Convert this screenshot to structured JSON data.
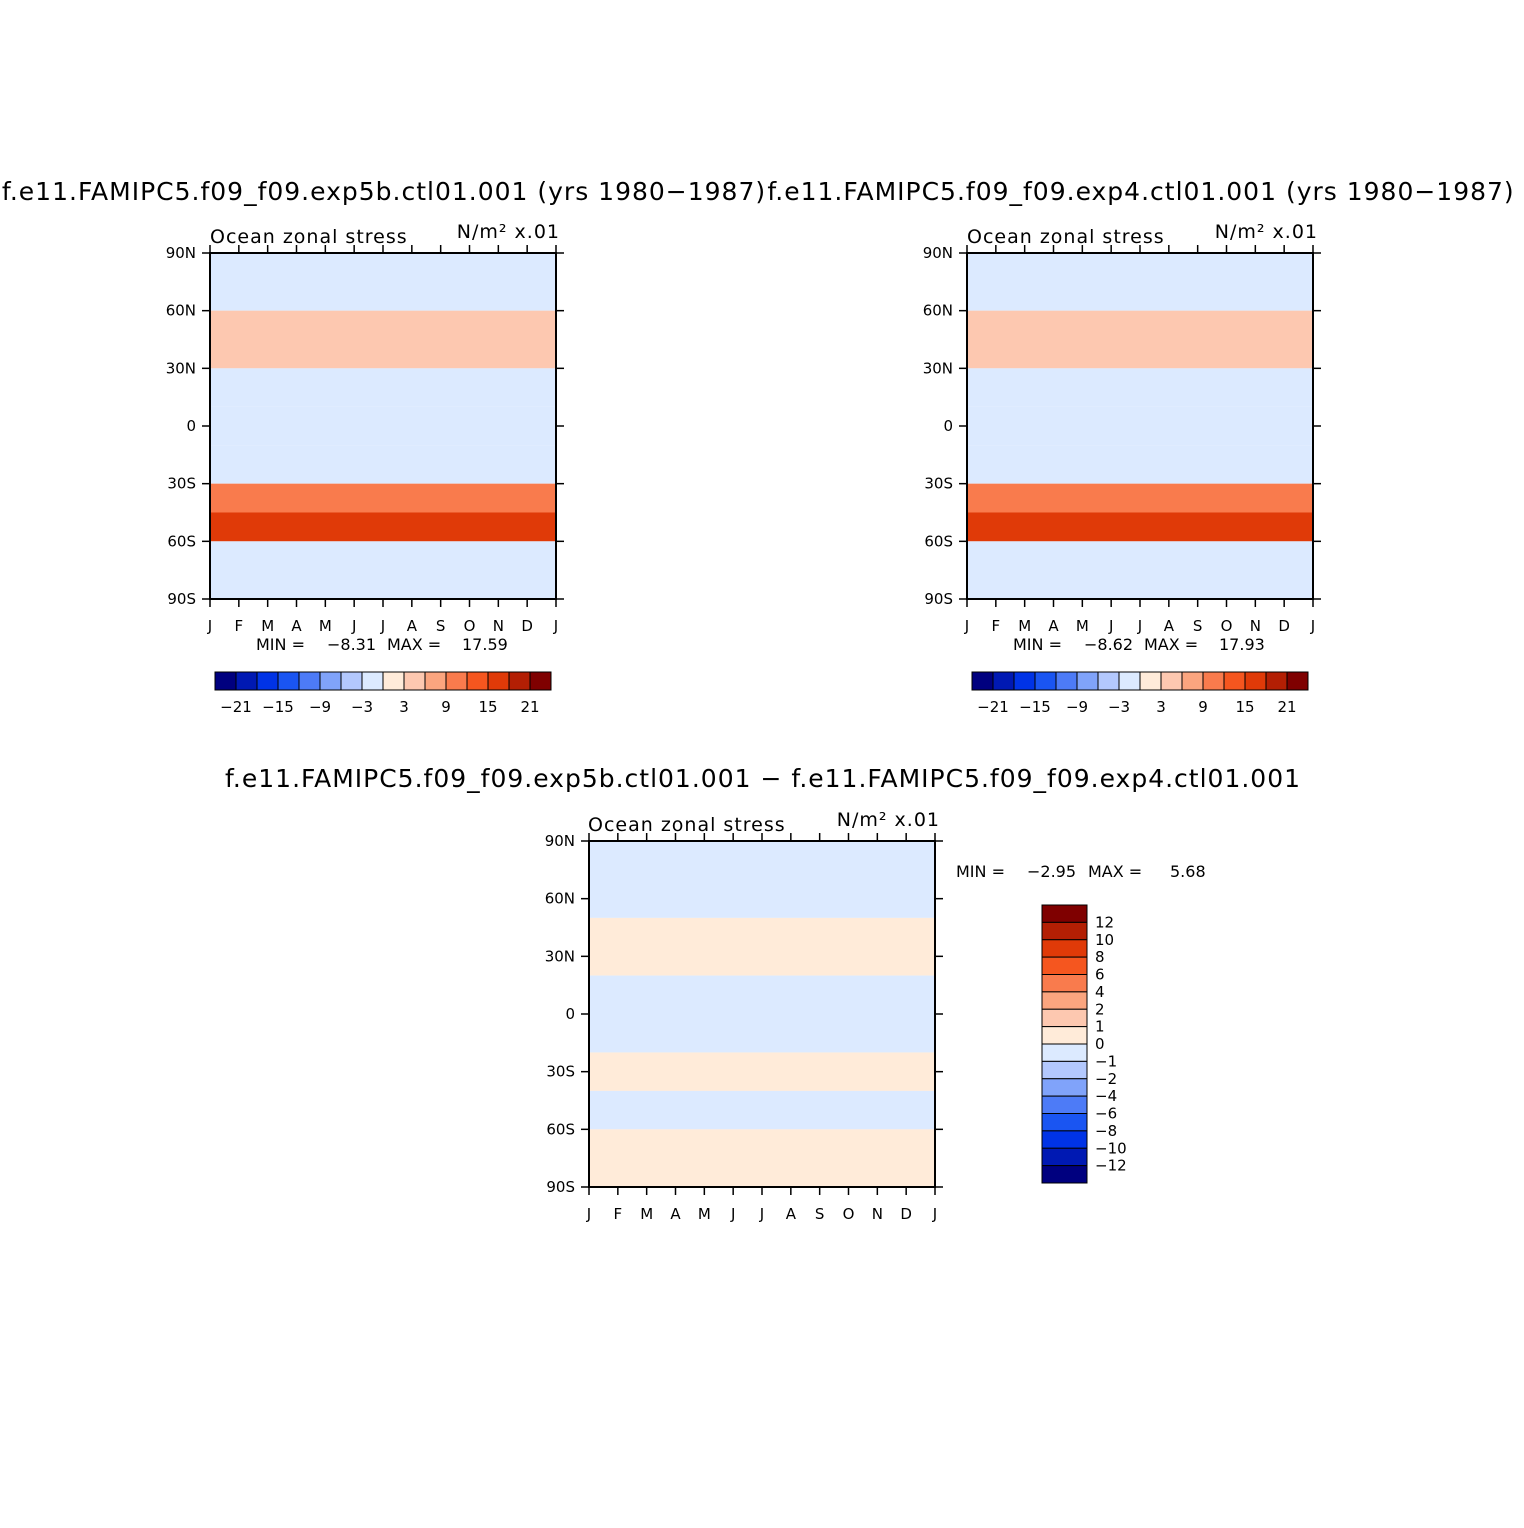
{
  "chart_data": [
    {
      "type": "heatmap",
      "title": "f.e11.FAMIPC5.f09_f09.exp5b.ctl01.001 (yrs 1980−1987)",
      "subtitle_left": "Ocean zonal stress",
      "subtitle_right": "N/m² x.01",
      "x_tick_labels": [
        "J",
        "F",
        "M",
        "A",
        "M",
        "J",
        "J",
        "A",
        "S",
        "O",
        "N",
        "D",
        "J"
      ],
      "y_tick_labels": [
        "90N",
        "60N",
        "30N",
        "0",
        "30S",
        "60S",
        "90S"
      ],
      "ylim": [
        -90,
        90
      ],
      "min_label": "MIN =",
      "min_value": "−8.31",
      "max_label": "MAX =",
      "max_value": "17.59",
      "colorbar": {
        "orientation": "horizontal",
        "colors": [
          "#00007f",
          "#0019b3",
          "#0033e6",
          "#1a55f2",
          "#4d7bf7",
          "#80a3fa",
          "#b3c8fd",
          "#dceaff",
          "#ffebd9",
          "#fdc8b0",
          "#fba57f",
          "#f97b4d",
          "#f5561f",
          "#e03a08",
          "#b31f04",
          "#7f0000"
        ],
        "label_values": [
          "−21",
          "−15",
          "−9",
          "−3",
          "3",
          "9",
          "15",
          "21"
        ]
      },
      "field_blocks": [
        {
          "lat_top": 90,
          "lat_bottom": 60,
          "value": "-1"
        },
        {
          "lat_top": 60,
          "lat_bottom": 30,
          "value": "3"
        },
        {
          "lat_top": 30,
          "lat_bottom": 10,
          "value": "-3"
        },
        {
          "lat_top": 10,
          "lat_bottom": -10,
          "value": "-1"
        },
        {
          "lat_top": -10,
          "lat_bottom": -30,
          "value": "-3"
        },
        {
          "lat_top": -30,
          "lat_bottom": -45,
          "value": "9"
        },
        {
          "lat_top": -45,
          "lat_bottom": -60,
          "value": "17"
        },
        {
          "lat_top": -60,
          "lat_bottom": -90,
          "value": "-1"
        }
      ]
    },
    {
      "type": "heatmap",
      "title": "f.e11.FAMIPC5.f09_f09.exp4.ctl01.001 (yrs 1980−1987)",
      "subtitle_left": "Ocean zonal stress",
      "subtitle_right": "N/m² x.01",
      "x_tick_labels": [
        "J",
        "F",
        "M",
        "A",
        "M",
        "J",
        "J",
        "A",
        "S",
        "O",
        "N",
        "D",
        "J"
      ],
      "y_tick_labels": [
        "90N",
        "60N",
        "30N",
        "0",
        "30S",
        "60S",
        "90S"
      ],
      "ylim": [
        -90,
        90
      ],
      "min_label": "MIN =",
      "min_value": "−8.62",
      "max_label": "MAX =",
      "max_value": "17.93",
      "colorbar": {
        "orientation": "horizontal",
        "colors": [
          "#00007f",
          "#0019b3",
          "#0033e6",
          "#1a55f2",
          "#4d7bf7",
          "#80a3fa",
          "#b3c8fd",
          "#dceaff",
          "#ffebd9",
          "#fdc8b0",
          "#fba57f",
          "#f97b4d",
          "#f5561f",
          "#e03a08",
          "#b31f04",
          "#7f0000"
        ],
        "label_values": [
          "−21",
          "−15",
          "−9",
          "−3",
          "3",
          "9",
          "15",
          "21"
        ]
      },
      "field_blocks": [
        {
          "lat_top": 90,
          "lat_bottom": 60,
          "value": "-1"
        },
        {
          "lat_top": 60,
          "lat_bottom": 30,
          "value": "3"
        },
        {
          "lat_top": 30,
          "lat_bottom": 10,
          "value": "-3"
        },
        {
          "lat_top": 10,
          "lat_bottom": -10,
          "value": "-1"
        },
        {
          "lat_top": -10,
          "lat_bottom": -30,
          "value": "-3"
        },
        {
          "lat_top": -30,
          "lat_bottom": -45,
          "value": "9"
        },
        {
          "lat_top": -45,
          "lat_bottom": -60,
          "value": "17"
        },
        {
          "lat_top": -60,
          "lat_bottom": -90,
          "value": "-1"
        }
      ]
    },
    {
      "type": "heatmap",
      "title": "f.e11.FAMIPC5.f09_f09.exp5b.ctl01.001 − f.e11.FAMIPC5.f09_f09.exp4.ctl01.001",
      "subtitle_left": "Ocean zonal stress",
      "subtitle_right": "N/m² x.01",
      "x_tick_labels": [
        "J",
        "F",
        "M",
        "A",
        "M",
        "J",
        "J",
        "A",
        "S",
        "O",
        "N",
        "D",
        "J"
      ],
      "y_tick_labels": [
        "90N",
        "60N",
        "30N",
        "0",
        "30S",
        "60S",
        "90S"
      ],
      "ylim": [
        -90,
        90
      ],
      "min_label": "MIN =",
      "min_value": "−2.95",
      "max_label": "MAX =",
      "max_value": "5.68",
      "colorbar": {
        "orientation": "vertical",
        "colors": [
          "#7f0000",
          "#b31f04",
          "#e03a08",
          "#f5561f",
          "#f97b4d",
          "#fba57f",
          "#fdc8b0",
          "#ffebd9",
          "#dceaff",
          "#b3c8fd",
          "#80a3fa",
          "#4d7bf7",
          "#1a55f2",
          "#0033e6",
          "#0019b3",
          "#00007f"
        ],
        "label_values": [
          "12",
          "10",
          "8",
          "6",
          "4",
          "2",
          "1",
          "0",
          "−1",
          "−2",
          "−4",
          "−6",
          "−8",
          "−10",
          "−12"
        ]
      },
      "field_blocks": [
        {
          "lat_top": 90,
          "lat_bottom": 50,
          "value": "-0.5"
        },
        {
          "lat_top": 50,
          "lat_bottom": 20,
          "value": "0.5"
        },
        {
          "lat_top": 20,
          "lat_bottom": -20,
          "value": "-0.5"
        },
        {
          "lat_top": -20,
          "lat_bottom": -40,
          "value": "0.5"
        },
        {
          "lat_top": -40,
          "lat_bottom": -60,
          "value": "-0.5"
        },
        {
          "lat_top": -60,
          "lat_bottom": -90,
          "value": "0.5"
        }
      ]
    }
  ]
}
